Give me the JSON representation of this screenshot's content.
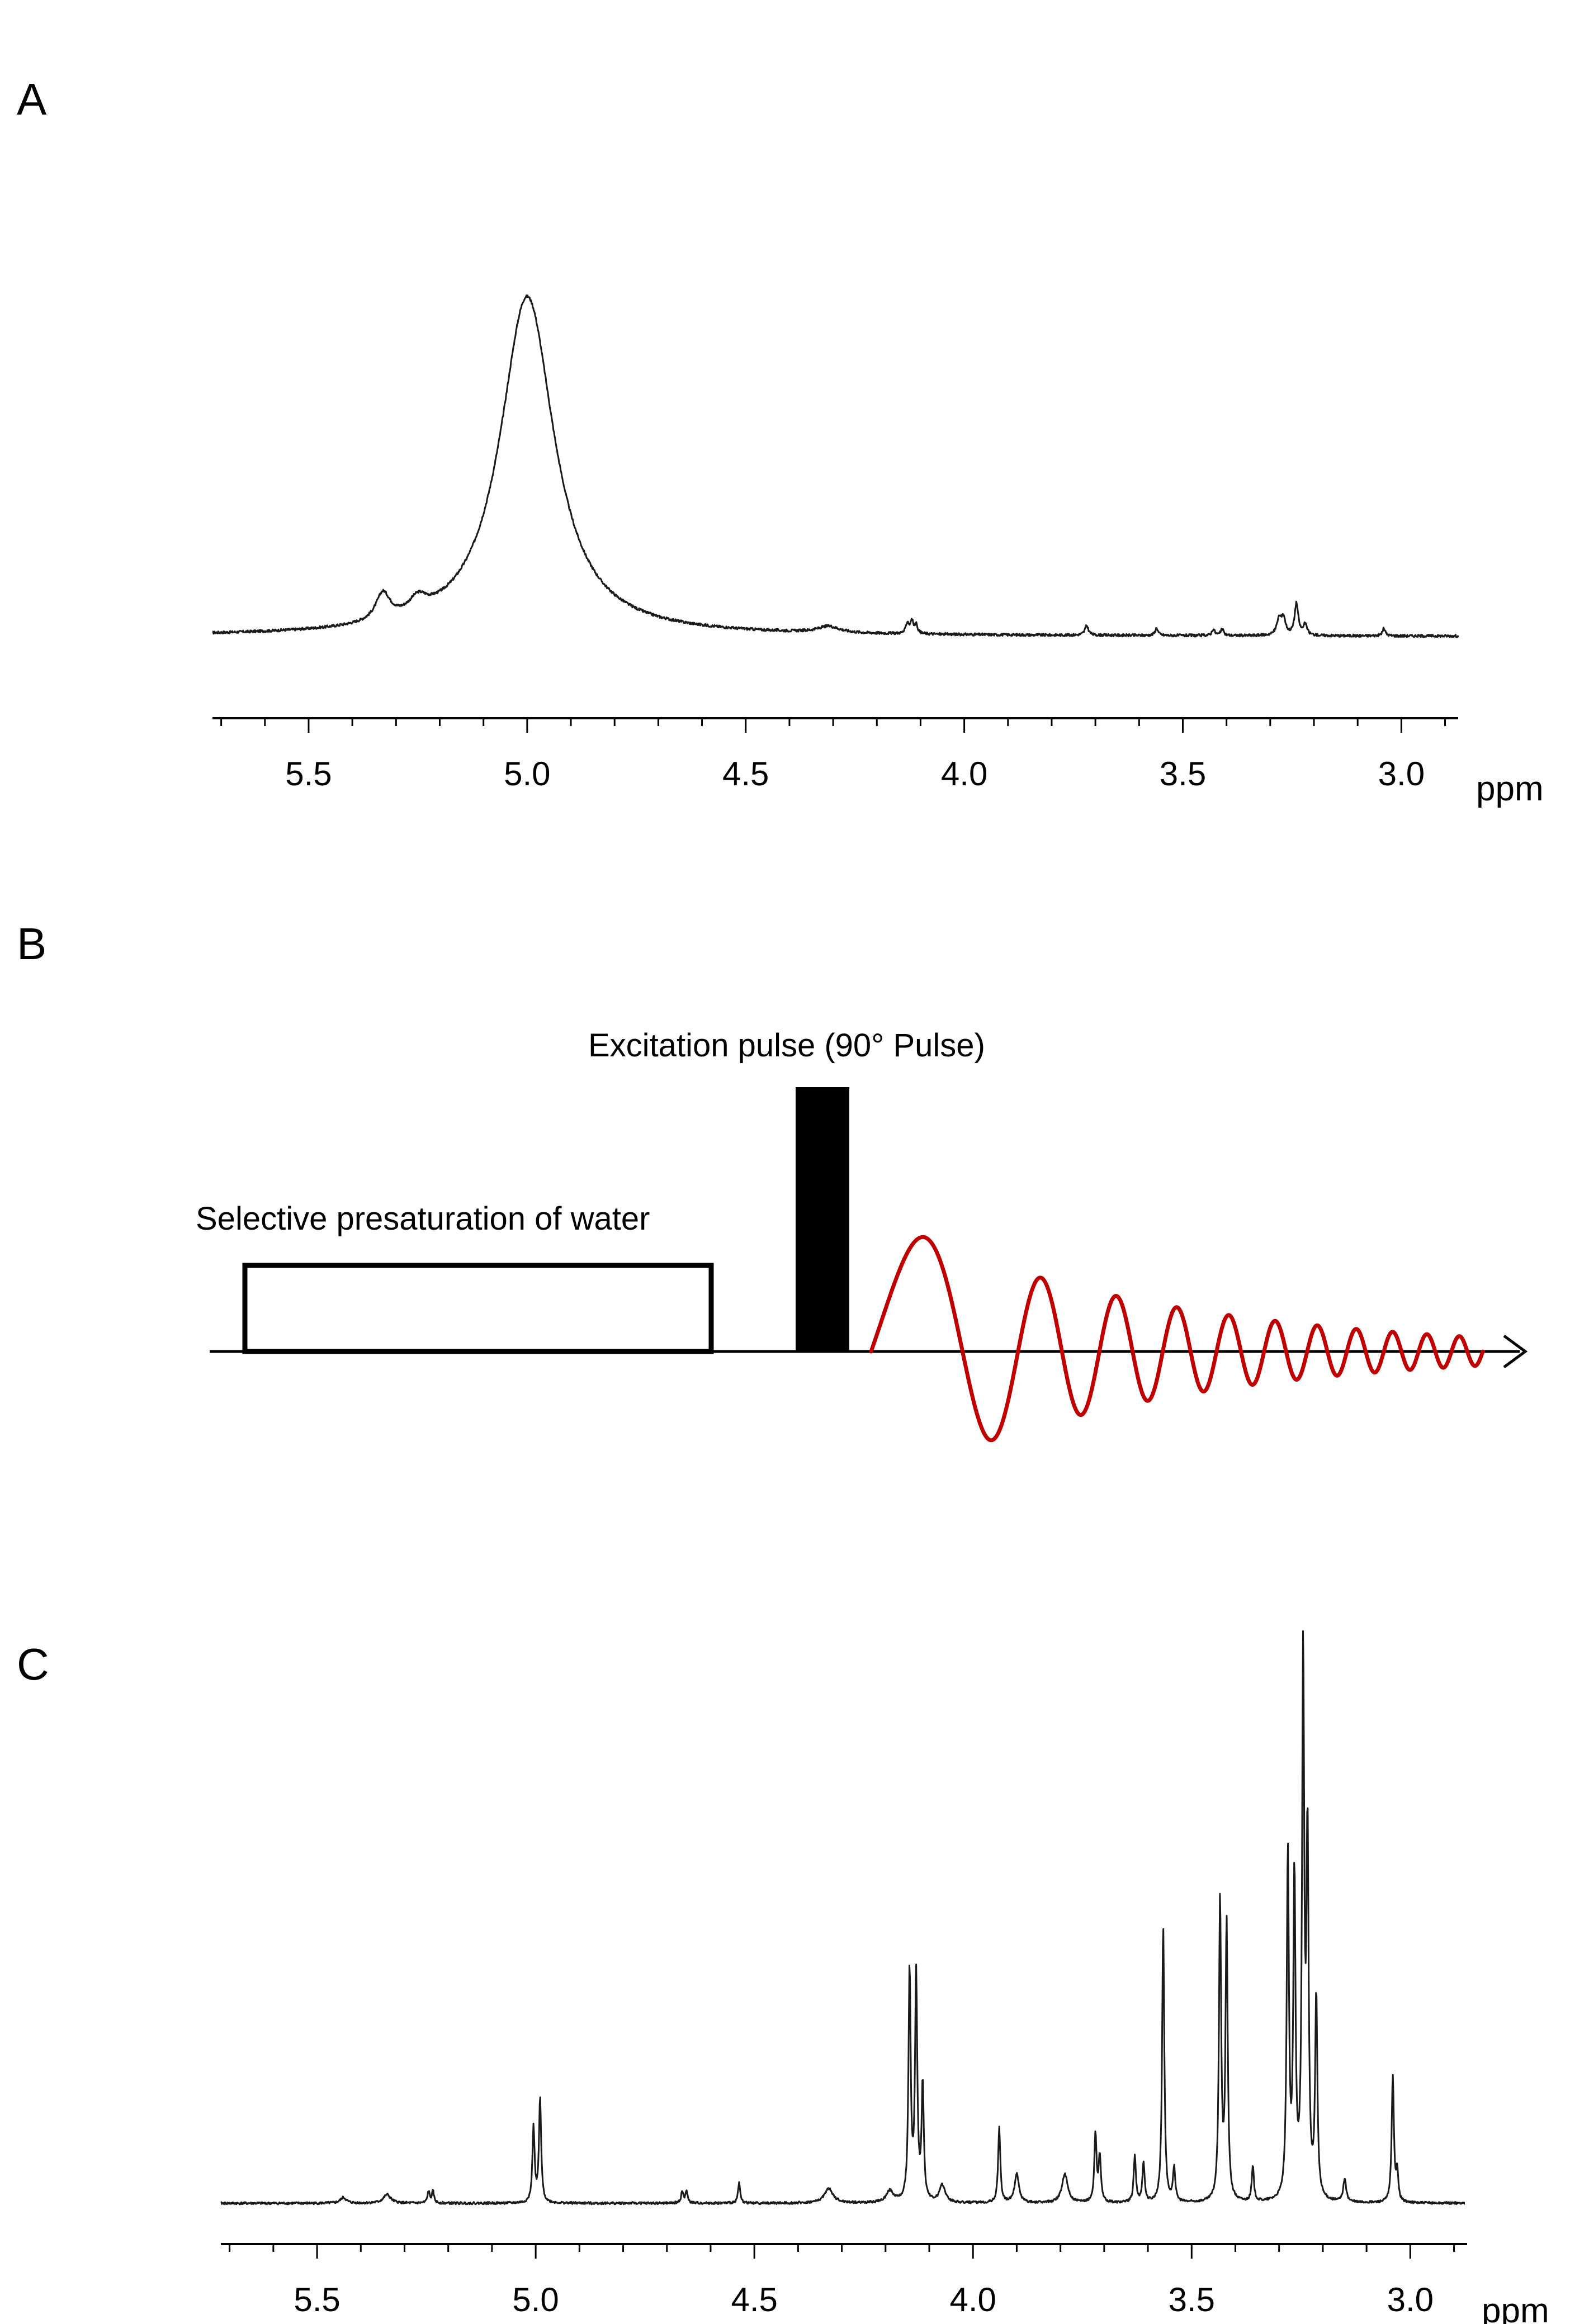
{
  "panels": {
    "a": {
      "label": "A"
    },
    "b": {
      "label": "B"
    },
    "c": {
      "label": "C"
    }
  },
  "pulse_sequence": {
    "presaturation_label": "Selective presaturation of water",
    "excitation_label": "Excitation pulse (90° Pulse)",
    "fid_color": "#c00000"
  },
  "chart_data": [
    {
      "type": "line",
      "title": "",
      "xlabel": "ppm",
      "ylabel": "",
      "xlim": [
        5.72,
        2.87
      ],
      "xdir": "reversed",
      "xticks": [
        5.5,
        5.0,
        4.5,
        4.0,
        3.5,
        3.0
      ],
      "tick_labels": [
        "5.5",
        "5.0",
        "4.5",
        "4.0",
        "3.5",
        "3.0"
      ],
      "grid": false,
      "baseline": 0.03,
      "ylim": [
        0,
        1
      ],
      "peaks": [
        {
          "ppm": 5.0,
          "height": 1.6,
          "width": 0.075
        },
        {
          "ppm": 5.33,
          "height": 0.13,
          "width": 0.02
        },
        {
          "ppm": 5.25,
          "height": 0.07,
          "width": 0.025
        },
        {
          "ppm": 4.31,
          "height": 0.03,
          "width": 0.03
        },
        {
          "ppm": 4.13,
          "height": 0.05,
          "width": 0.004
        },
        {
          "ppm": 4.12,
          "height": 0.06,
          "width": 0.004
        },
        {
          "ppm": 4.11,
          "height": 0.04,
          "width": 0.004
        },
        {
          "ppm": 3.72,
          "height": 0.045,
          "width": 0.005
        },
        {
          "ppm": 3.56,
          "height": 0.035,
          "width": 0.004
        },
        {
          "ppm": 3.43,
          "height": 0.03,
          "width": 0.004
        },
        {
          "ppm": 3.41,
          "height": 0.03,
          "width": 0.004
        },
        {
          "ppm": 3.28,
          "height": 0.07,
          "width": 0.006
        },
        {
          "ppm": 3.27,
          "height": 0.08,
          "width": 0.006
        },
        {
          "ppm": 3.24,
          "height": 0.15,
          "width": 0.005
        },
        {
          "ppm": 3.22,
          "height": 0.05,
          "width": 0.005
        },
        {
          "ppm": 3.04,
          "height": 0.035,
          "width": 0.004
        }
      ]
    },
    {
      "type": "line",
      "title": "",
      "xlabel": "ppm",
      "ylabel": "",
      "xlim": [
        5.72,
        2.87
      ],
      "xdir": "reversed",
      "xticks": [
        5.5,
        5.0,
        4.5,
        4.0,
        3.5,
        3.0
      ],
      "tick_labels": [
        "5.5",
        "5.0",
        "4.5",
        "4.0",
        "3.5",
        "3.0"
      ],
      "grid": false,
      "baseline": 0.0,
      "ylim": [
        0,
        1
      ],
      "peaks": [
        {
          "ppm": 5.44,
          "height": 0.01,
          "width": 0.008
        },
        {
          "ppm": 5.34,
          "height": 0.015,
          "width": 0.01
        },
        {
          "ppm": 5.245,
          "height": 0.02,
          "width": 0.003
        },
        {
          "ppm": 5.235,
          "height": 0.02,
          "width": 0.003
        },
        {
          "ppm": 5.005,
          "height": 0.13,
          "width": 0.003
        },
        {
          "ppm": 4.99,
          "height": 0.18,
          "width": 0.003
        },
        {
          "ppm": 4.665,
          "height": 0.02,
          "width": 0.003
        },
        {
          "ppm": 4.655,
          "height": 0.02,
          "width": 0.003
        },
        {
          "ppm": 4.535,
          "height": 0.035,
          "width": 0.003
        },
        {
          "ppm": 4.33,
          "height": 0.025,
          "width": 0.012
        },
        {
          "ppm": 4.19,
          "height": 0.02,
          "width": 0.01
        },
        {
          "ppm": 4.145,
          "height": 0.4,
          "width": 0.003
        },
        {
          "ppm": 4.13,
          "height": 0.39,
          "width": 0.003
        },
        {
          "ppm": 4.115,
          "height": 0.2,
          "width": 0.003
        },
        {
          "ppm": 4.07,
          "height": 0.03,
          "width": 0.008
        },
        {
          "ppm": 3.94,
          "height": 0.13,
          "width": 0.003
        },
        {
          "ppm": 3.9,
          "height": 0.05,
          "width": 0.006
        },
        {
          "ppm": 3.79,
          "height": 0.05,
          "width": 0.008
        },
        {
          "ppm": 3.72,
          "height": 0.12,
          "width": 0.003
        },
        {
          "ppm": 3.71,
          "height": 0.08,
          "width": 0.003
        },
        {
          "ppm": 3.63,
          "height": 0.08,
          "width": 0.003
        },
        {
          "ppm": 3.61,
          "height": 0.07,
          "width": 0.003
        },
        {
          "ppm": 3.565,
          "height": 0.48,
          "width": 0.003
        },
        {
          "ppm": 3.54,
          "height": 0.06,
          "width": 0.003
        },
        {
          "ppm": 3.435,
          "height": 0.52,
          "width": 0.003
        },
        {
          "ppm": 3.42,
          "height": 0.48,
          "width": 0.003
        },
        {
          "ppm": 3.36,
          "height": 0.06,
          "width": 0.003
        },
        {
          "ppm": 3.28,
          "height": 0.6,
          "width": 0.003
        },
        {
          "ppm": 3.265,
          "height": 0.55,
          "width": 0.003
        },
        {
          "ppm": 3.245,
          "height": 0.93,
          "width": 0.003
        },
        {
          "ppm": 3.235,
          "height": 0.61,
          "width": 0.003
        },
        {
          "ppm": 3.215,
          "height": 0.35,
          "width": 0.003
        },
        {
          "ppm": 3.15,
          "height": 0.04,
          "width": 0.004
        },
        {
          "ppm": 3.04,
          "height": 0.22,
          "width": 0.003
        },
        {
          "ppm": 3.03,
          "height": 0.05,
          "width": 0.003
        }
      ]
    }
  ]
}
